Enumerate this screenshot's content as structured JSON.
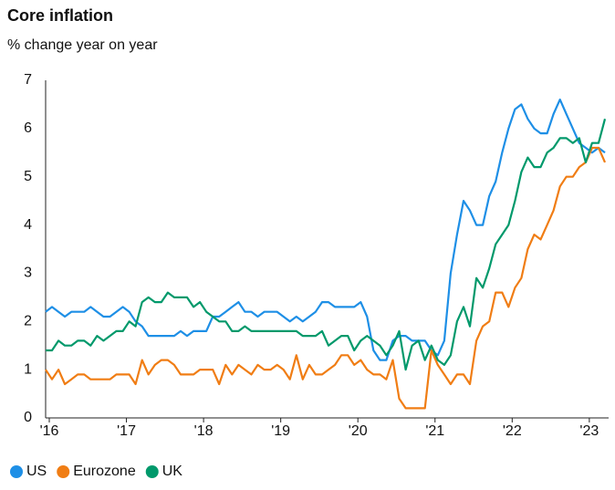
{
  "chart_data": {
    "type": "line",
    "title": "Core inflation",
    "subtitle": "% change year on year",
    "categories": [
      "'16",
      null,
      null,
      null,
      null,
      null,
      null,
      null,
      null,
      null,
      null,
      null,
      "'17",
      null,
      null,
      null,
      null,
      null,
      null,
      null,
      null,
      null,
      null,
      null,
      "'18",
      null,
      null,
      null,
      null,
      null,
      null,
      null,
      null,
      null,
      null,
      null,
      "'19",
      null,
      null,
      null,
      null,
      null,
      null,
      null,
      null,
      null,
      null,
      null,
      "'20",
      null,
      null,
      null,
      null,
      null,
      null,
      null,
      null,
      null,
      null,
      null,
      "'21",
      null,
      null,
      null,
      null,
      null,
      null,
      null,
      null,
      null,
      null,
      null,
      "'22",
      null,
      null,
      null,
      null,
      null,
      null,
      null,
      null,
      null,
      null,
      null,
      "'23",
      null,
      null,
      null
    ],
    "series": [
      {
        "name": "US",
        "color": "#1e8fe6",
        "values": [
          2.2,
          2.3,
          2.2,
          2.1,
          2.2,
          2.2,
          2.2,
          2.3,
          2.2,
          2.1,
          2.1,
          2.2,
          2.3,
          2.2,
          2.0,
          1.9,
          1.7,
          1.7,
          1.7,
          1.7,
          1.7,
          1.8,
          1.7,
          1.8,
          1.8,
          1.8,
          2.1,
          2.1,
          2.2,
          2.3,
          2.4,
          2.2,
          2.2,
          2.1,
          2.2,
          2.2,
          2.2,
          2.1,
          2.0,
          2.1,
          2.0,
          2.1,
          2.2,
          2.4,
          2.4,
          2.3,
          2.3,
          2.3,
          2.3,
          2.4,
          2.1,
          1.4,
          1.2,
          1.2,
          1.6,
          1.7,
          1.7,
          1.6,
          1.6,
          1.6,
          1.4,
          1.3,
          1.6,
          3.0,
          3.8,
          4.5,
          4.3,
          4.0,
          4.0,
          4.6,
          4.9,
          5.5,
          6.0,
          6.4,
          6.5,
          6.2,
          6.0,
          5.9,
          5.9,
          6.3,
          6.6,
          6.3,
          6.0,
          5.7,
          5.6,
          5.5,
          5.6,
          5.5
        ]
      },
      {
        "name": "Eurozone",
        "color": "#f07d14",
        "values": [
          1.0,
          0.8,
          1.0,
          0.7,
          0.8,
          0.9,
          0.9,
          0.8,
          0.8,
          0.8,
          0.8,
          0.9,
          0.9,
          0.9,
          0.7,
          1.2,
          0.9,
          1.1,
          1.2,
          1.2,
          1.1,
          0.9,
          0.9,
          0.9,
          1.0,
          1.0,
          1.0,
          0.7,
          1.1,
          0.9,
          1.1,
          1.0,
          0.9,
          1.1,
          1.0,
          1.0,
          1.1,
          1.0,
          0.8,
          1.3,
          0.8,
          1.1,
          0.9,
          0.9,
          1.0,
          1.1,
          1.3,
          1.3,
          1.1,
          1.2,
          1.0,
          0.9,
          0.9,
          0.8,
          1.2,
          0.4,
          0.2,
          0.2,
          0.2,
          0.2,
          1.4,
          1.1,
          0.9,
          0.7,
          0.9,
          0.9,
          0.7,
          1.6,
          1.9,
          2.0,
          2.6,
          2.6,
          2.3,
          2.7,
          2.9,
          3.5,
          3.8,
          3.7,
          4.0,
          4.3,
          4.8,
          5.0,
          5.0,
          5.2,
          5.3,
          5.6,
          5.6,
          5.3
        ]
      },
      {
        "name": "UK",
        "color": "#00996b",
        "values": [
          1.4,
          1.4,
          1.6,
          1.5,
          1.5,
          1.6,
          1.6,
          1.5,
          1.7,
          1.6,
          1.7,
          1.8,
          1.8,
          2.0,
          1.9,
          2.4,
          2.5,
          2.4,
          2.4,
          2.6,
          2.5,
          2.5,
          2.5,
          2.3,
          2.4,
          2.2,
          2.1,
          2.0,
          2.0,
          1.8,
          1.8,
          1.9,
          1.8,
          1.8,
          1.8,
          1.8,
          1.8,
          1.8,
          1.8,
          1.8,
          1.7,
          1.7,
          1.7,
          1.8,
          1.5,
          1.6,
          1.7,
          1.7,
          1.4,
          1.6,
          1.7,
          1.6,
          1.5,
          1.3,
          1.5,
          1.8,
          1.0,
          1.5,
          1.6,
          1.2,
          1.5,
          1.2,
          1.1,
          1.3,
          2.0,
          2.3,
          1.9,
          2.9,
          2.7,
          3.1,
          3.6,
          3.8,
          4.0,
          4.5,
          5.1,
          5.4,
          5.2,
          5.2,
          5.5,
          5.6,
          5.8,
          5.8,
          5.7,
          5.8,
          5.3,
          5.7,
          5.7,
          6.2
        ]
      }
    ],
    "ylim": [
      0,
      7
    ],
    "yticks": [
      0,
      1,
      2,
      3,
      4,
      5,
      6,
      7
    ],
    "grid": false
  }
}
